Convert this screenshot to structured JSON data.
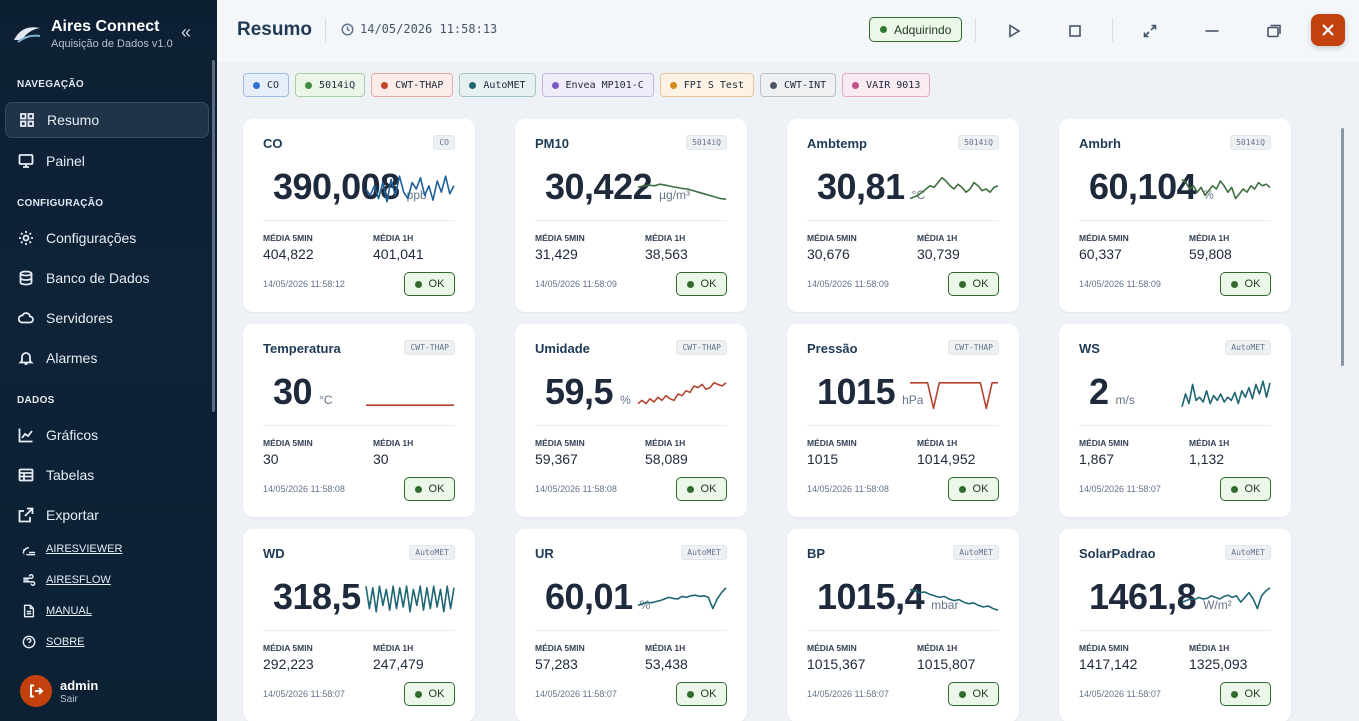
{
  "brand": {
    "title": "Aires Connect",
    "subtitle": "Aquisição de Dados v1.0"
  },
  "sidebar": {
    "sections": [
      {
        "title": "NAVEGAÇÃO",
        "items": [
          {
            "label": "Resumo",
            "icon": "grid-icon",
            "active": true
          },
          {
            "label": "Painel",
            "icon": "monitor-icon",
            "active": false
          }
        ]
      },
      {
        "title": "CONFIGURAÇÃO",
        "items": [
          {
            "label": "Configurações",
            "icon": "gear-icon"
          },
          {
            "label": "Banco de Dados",
            "icon": "database-icon"
          },
          {
            "label": "Servidores",
            "icon": "cloud-icon"
          },
          {
            "label": "Alarmes",
            "icon": "bell-icon"
          }
        ]
      },
      {
        "title": "DADOS",
        "items": [
          {
            "label": "Gráficos",
            "icon": "chart-line-icon"
          },
          {
            "label": "Tabelas",
            "icon": "table-icon"
          },
          {
            "label": "Exportar",
            "icon": "export-icon"
          }
        ]
      }
    ],
    "links": [
      {
        "label": "AIRESVIEWER",
        "icon": "wifi-icon"
      },
      {
        "label": "AIRESFLOW",
        "icon": "wind-icon"
      },
      {
        "label": "MANUAL",
        "icon": "document-icon"
      },
      {
        "label": "SOBRE",
        "icon": "help-icon"
      }
    ],
    "user": {
      "name": "admin",
      "action": "Sair"
    }
  },
  "header": {
    "title": "Resumo",
    "datetime": "14/05/2026 11:58:13",
    "status": "Adquirindo"
  },
  "devices": [
    {
      "name": "CO",
      "color": "#2f6fd0",
      "bg": "#e6eef9",
      "border": "#9fbbe3"
    },
    {
      "name": "5014iQ",
      "color": "#3f8a3f",
      "bg": "#ebf5e8",
      "border": "#a9cfa3"
    },
    {
      "name": "CWT-THAP",
      "color": "#c0452b",
      "bg": "#fbece8",
      "border": "#e3ad9f"
    },
    {
      "name": "AutoMET",
      "color": "#1f6673",
      "bg": "#e7f1f2",
      "border": "#a4c4c9"
    },
    {
      "name": "Envea MP101-C",
      "color": "#7b5cc9",
      "bg": "#f0ecfa",
      "border": "#c4b5e6"
    },
    {
      "name": "FPI S Test",
      "color": "#d48a1c",
      "bg": "#fcf3e4",
      "border": "#e8c896"
    },
    {
      "name": "CWT-INT",
      "color": "#4b5563",
      "bg": "#eef0f2",
      "border": "#b9bfc7"
    },
    {
      "name": "VAIR 9013",
      "color": "#c0508a",
      "bg": "#faeaf2",
      "border": "#e3aac7"
    }
  ],
  "labels": {
    "avg5": "MÉDIA 5MIN",
    "avg1h": "MÉDIA 1H",
    "ok": "OK"
  },
  "cards": [
    {
      "title": "CO",
      "tag": "CO",
      "value": "390,008",
      "unit": "ppb",
      "avg5": "404,822",
      "avg1h": "401,041",
      "time": "14/05/2026 11:58:12",
      "color": "#1f5f9a",
      "spark": [
        0.5,
        0.3,
        0.6,
        0.2,
        0.7,
        0.1,
        0.8,
        0.3,
        0.9,
        0.4,
        0.2,
        0.7,
        0.5,
        0.85,
        0.3,
        0.6,
        0.15,
        0.75,
        0.4,
        0.9,
        0.35,
        0.6
      ]
    },
    {
      "title": "PM10",
      "tag": "5014iQ",
      "value": "30,422",
      "unit": "µg/m³",
      "avg5": "31,429",
      "avg1h": "38,563",
      "time": "14/05/2026 11:58:09",
      "color": "#3f6f3f",
      "spark": [
        0.55,
        0.6,
        0.62,
        0.6,
        0.65,
        0.62,
        0.58,
        0.55,
        0.52,
        0.5,
        0.45,
        0.4,
        0.35,
        0.3,
        0.25,
        0.2,
        0.18
      ]
    },
    {
      "title": "Ambtemp",
      "tag": "5014iQ",
      "value": "30,81",
      "unit": "°C",
      "avg5": "30,676",
      "avg1h": "30,739",
      "time": "14/05/2026 11:58:09",
      "color": "#3f6f3f",
      "spark": [
        0.2,
        0.25,
        0.3,
        0.4,
        0.5,
        0.6,
        0.55,
        0.7,
        0.85,
        0.75,
        0.6,
        0.5,
        0.65,
        0.55,
        0.4,
        0.5,
        0.7,
        0.6,
        0.45,
        0.5,
        0.4,
        0.55,
        0.6
      ]
    },
    {
      "title": "Ambrh",
      "tag": "5014iQ",
      "value": "60,104",
      "unit": "%",
      "avg5": "60,337",
      "avg1h": "59,808",
      "time": "14/05/2026 11:58:09",
      "color": "#3f6f3f",
      "spark": [
        0.8,
        0.7,
        0.5,
        0.6,
        0.4,
        0.55,
        0.3,
        0.45,
        0.6,
        0.5,
        0.75,
        0.6,
        0.4,
        0.55,
        0.2,
        0.35,
        0.5,
        0.4,
        0.6,
        0.5,
        0.7,
        0.6,
        0.65,
        0.55
      ]
    },
    {
      "title": "Temperatura",
      "tag": "CWT-THAP",
      "value": "30",
      "unit": "°C",
      "avg5": "30",
      "avg1h": "30",
      "time": "14/05/2026 11:58:08",
      "color": "#b5442f",
      "spark": [
        0.15,
        0.15,
        0.15,
        0.15,
        0.15,
        0.15,
        0.15,
        0.15
      ]
    },
    {
      "title": "Umidade",
      "tag": "CWT-THAP",
      "value": "59,5",
      "unit": "%",
      "avg5": "59,367",
      "avg1h": "58,089",
      "time": "14/05/2026 11:58:08",
      "color": "#b5442f",
      "spark": [
        0.2,
        0.3,
        0.2,
        0.35,
        0.25,
        0.4,
        0.3,
        0.45,
        0.35,
        0.3,
        0.5,
        0.45,
        0.6,
        0.55,
        0.75,
        0.7,
        0.8,
        0.65,
        0.7,
        0.85,
        0.8,
        0.75,
        0.85
      ]
    },
    {
      "title": "Pressão",
      "tag": "CWT-THAP",
      "value": "1015",
      "unit": "hPa",
      "avg5": "1015",
      "avg1h": "1014,952",
      "time": "14/05/2026 11:58:08",
      "color": "#b5442f",
      "spark": [
        0.85,
        0.85,
        0.85,
        0.85,
        0.05,
        0.85,
        0.85,
        0.85,
        0.85,
        0.85,
        0.85,
        0.85,
        0.85,
        0.05,
        0.85,
        0.85
      ]
    },
    {
      "title": "WS",
      "tag": "AutoMET",
      "value": "2",
      "unit": "m/s",
      "avg5": "1,867",
      "avg1h": "1,132",
      "time": "14/05/2026 11:58:07",
      "color": "#1f6673",
      "spark": [
        0.1,
        0.5,
        0.2,
        0.8,
        0.3,
        0.4,
        0.25,
        0.6,
        0.2,
        0.45,
        0.3,
        0.5,
        0.25,
        0.4,
        0.3,
        0.55,
        0.2,
        0.6,
        0.4,
        0.7,
        0.35,
        0.8,
        0.5,
        0.9,
        0.4,
        0.85
      ]
    },
    {
      "title": "WD",
      "tag": "AutoMET",
      "value": "318,5",
      "unit": "°",
      "avg5": "292,223",
      "avg1h": "247,479",
      "time": "14/05/2026 11:58:07",
      "color": "#1f6673",
      "spark": [
        0.9,
        0.2,
        0.85,
        0.1,
        0.9,
        0.3,
        0.8,
        0.15,
        0.9,
        0.2,
        0.85,
        0.25,
        0.9,
        0.1,
        0.8,
        0.3,
        0.9,
        0.15,
        0.85,
        0.2,
        0.9,
        0.25,
        0.8,
        0.1,
        0.9,
        0.2,
        0.85
      ]
    },
    {
      "title": "UR",
      "tag": "AutoMET",
      "value": "60,01",
      "unit": "%",
      "avg5": "57,283",
      "avg1h": "53,438",
      "time": "14/05/2026 11:58:07",
      "color": "#1f6673",
      "spark": [
        0.3,
        0.35,
        0.4,
        0.38,
        0.42,
        0.45,
        0.5,
        0.55,
        0.52,
        0.5,
        0.58,
        0.55,
        0.6,
        0.62,
        0.58,
        0.6,
        0.55,
        0.2,
        0.5,
        0.7,
        0.85
      ]
    },
    {
      "title": "BP",
      "tag": "AutoMET",
      "value": "1015,4",
      "unit": "mbar",
      "avg5": "1015,367",
      "avg1h": "1015,807",
      "time": "14/05/2026 11:58:07",
      "color": "#1f6673",
      "spark": [
        0.8,
        0.75,
        0.7,
        0.72,
        0.65,
        0.6,
        0.55,
        0.58,
        0.5,
        0.45,
        0.48,
        0.4,
        0.35,
        0.38,
        0.3,
        0.25,
        0.28,
        0.2,
        0.15
      ]
    },
    {
      "title": "SolarPadrao",
      "tag": "AutoMET",
      "value": "1461,8",
      "unit": "W/m²",
      "avg5": "1417,142",
      "avg1h": "1325,093",
      "time": "14/05/2026 11:58:07",
      "color": "#1f6673",
      "spark": [
        0.4,
        0.45,
        0.5,
        0.48,
        0.55,
        0.5,
        0.52,
        0.6,
        0.55,
        0.5,
        0.58,
        0.62,
        0.55,
        0.6,
        0.4,
        0.55,
        0.7,
        0.5,
        0.2,
        0.6,
        0.75,
        0.85
      ]
    }
  ]
}
